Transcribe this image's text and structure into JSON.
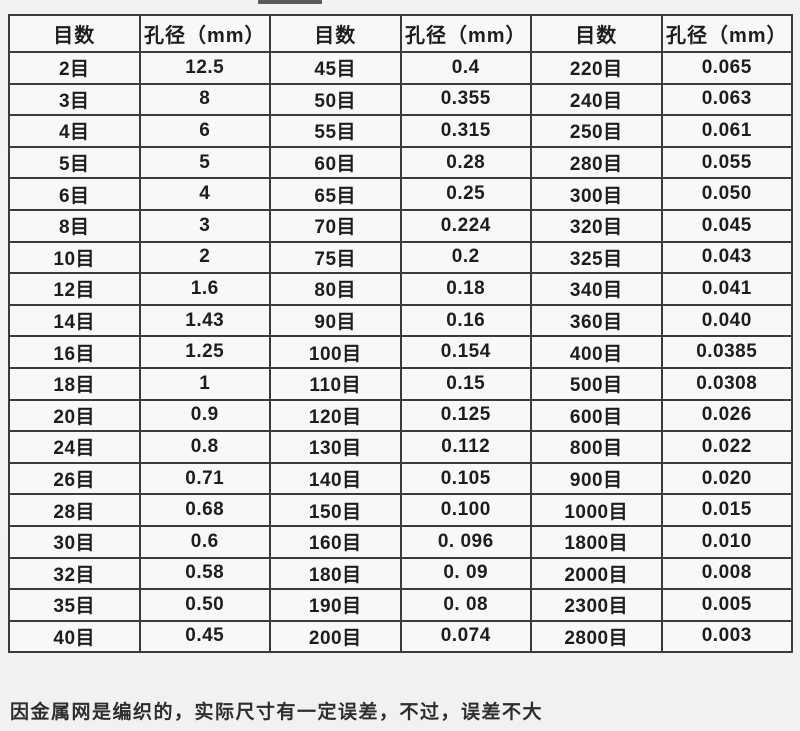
{
  "artifact": {
    "description": "cropped-element-remnant-line"
  },
  "table": {
    "headers": [
      "目数",
      "孔径（mm）",
      "目数",
      "孔径（mm）",
      "目数",
      "孔径（mm）"
    ],
    "rows": [
      [
        "2目",
        "12.5",
        "45目",
        "0.4",
        "220目",
        "0.065"
      ],
      [
        "3目",
        "8",
        "50目",
        "0.355",
        "240目",
        "0.063"
      ],
      [
        "4目",
        "6",
        "55目",
        "0.315",
        "250目",
        "0.061"
      ],
      [
        "5目",
        "5",
        "60目",
        "0.28",
        "280目",
        "0.055"
      ],
      [
        "6目",
        "4",
        "65目",
        "0.25",
        "300目",
        "0.050"
      ],
      [
        "8目",
        "3",
        "70目",
        "0.224",
        "320目",
        "0.045"
      ],
      [
        "10目",
        "2",
        "75目",
        "0.2",
        "325目",
        "0.043"
      ],
      [
        "12目",
        "1.6",
        "80目",
        "0.18",
        "340目",
        "0.041"
      ],
      [
        "14目",
        "1.43",
        "90目",
        "0.16",
        "360目",
        "0.040"
      ],
      [
        "16目",
        "1.25",
        "100目",
        "0.154",
        "400目",
        "0.0385"
      ],
      [
        "18目",
        "1",
        "110目",
        "0.15",
        "500目",
        "0.0308"
      ],
      [
        "20目",
        "0.9",
        "120目",
        "0.125",
        "600目",
        "0.026"
      ],
      [
        "24目",
        "0.8",
        "130目",
        "0.112",
        "800目",
        "0.022"
      ],
      [
        "26目",
        "0.71",
        "140目",
        "0.105",
        "900目",
        "0.020"
      ],
      [
        "28目",
        "0.68",
        "150目",
        "0.100",
        "1000目",
        "0.015"
      ],
      [
        "30目",
        "0.6",
        "160目",
        "0. 096",
        "1800目",
        "0.010"
      ],
      [
        "32目",
        "0.58",
        "180目",
        "0. 09",
        "2000目",
        "0.008"
      ],
      [
        "35目",
        "0.50",
        "190目",
        "0. 08",
        "2300目",
        "0.005"
      ],
      [
        "40目",
        "0.45",
        "200目",
        "0.074",
        "2800目",
        "0.003"
      ]
    ]
  },
  "footer": {
    "note": "因金属网是编织的，实际尺寸有一定误差，不过，误差不大"
  },
  "colors": {
    "border": "#3b3b3b",
    "cell_background": "#f8f8f7",
    "page_background": "#f2f2f1",
    "text": "#1d1d1d"
  }
}
